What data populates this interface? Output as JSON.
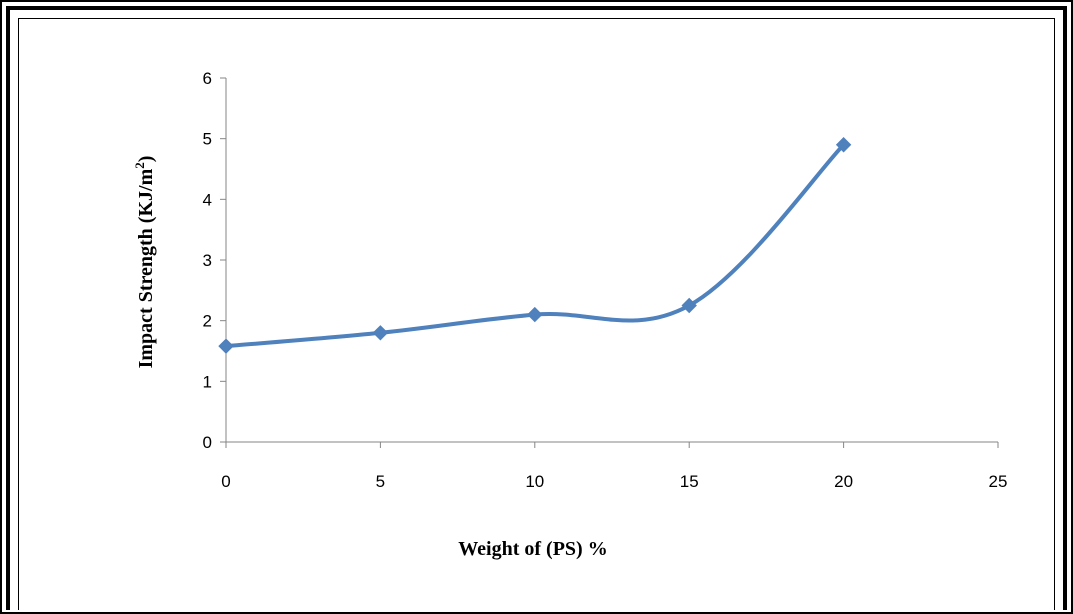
{
  "chart_data": {
    "type": "line",
    "xlabel": "Weight of (PS) %",
    "ylabel": "Impact Strength (KJ/m",
    "ylabel_superscript": "2",
    "ylabel_suffix": ")",
    "xlim": [
      0,
      25
    ],
    "ylim": [
      0,
      6
    ],
    "x_ticks": [
      "0",
      "5",
      "10",
      "15",
      "20",
      "25"
    ],
    "y_ticks": [
      "0",
      "1",
      "2",
      "3",
      "4",
      "5",
      "6"
    ],
    "grid": false,
    "smooth": true,
    "marker": "diamond",
    "series": [
      {
        "x": [
          0,
          5,
          10,
          15,
          20
        ],
        "values": [
          1.58,
          1.8,
          2.1,
          2.25,
          4.9
        ],
        "color": "#4F81BD"
      }
    ]
  }
}
